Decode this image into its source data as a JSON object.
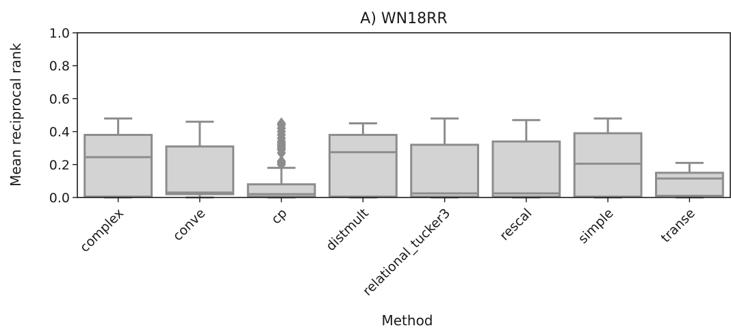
{
  "chart_data": {
    "type": "box",
    "title": "A) WN18RR",
    "xlabel": "Method",
    "ylabel": "Mean reciprocal rank",
    "ylim": [
      0.0,
      1.0
    ],
    "yticks": [
      "0.0",
      "0.2",
      "0.4",
      "0.6",
      "0.8",
      "1.0"
    ],
    "categories": [
      "complex",
      "conve",
      "cp",
      "distmult",
      "relational_tucker3",
      "rescal",
      "simple",
      "transe"
    ],
    "boxes": [
      {
        "min": 0.0,
        "q1": 0.005,
        "median": 0.245,
        "q3": 0.38,
        "max": 0.48,
        "outliers": []
      },
      {
        "min": 0.0,
        "q1": 0.02,
        "median": 0.03,
        "q3": 0.31,
        "max": 0.46,
        "outliers": []
      },
      {
        "min": 0.0,
        "q1": 0.005,
        "median": 0.02,
        "q3": 0.08,
        "max": 0.18,
        "outliers": [
          0.2,
          0.21,
          0.22,
          0.27,
          0.29,
          0.3,
          0.31,
          0.32,
          0.33,
          0.34,
          0.36,
          0.38,
          0.4,
          0.42,
          0.44,
          0.45
        ]
      },
      {
        "min": 0.0,
        "q1": 0.005,
        "median": 0.275,
        "q3": 0.38,
        "max": 0.45,
        "outliers": []
      },
      {
        "min": 0.0,
        "q1": 0.005,
        "median": 0.025,
        "q3": 0.32,
        "max": 0.48,
        "outliers": []
      },
      {
        "min": 0.0,
        "q1": 0.005,
        "median": 0.025,
        "q3": 0.34,
        "max": 0.47,
        "outliers": []
      },
      {
        "min": 0.0,
        "q1": 0.005,
        "median": 0.205,
        "q3": 0.39,
        "max": 0.48,
        "outliers": []
      },
      {
        "min": 0.0,
        "q1": 0.01,
        "median": 0.115,
        "q3": 0.15,
        "max": 0.21,
        "outliers": []
      }
    ],
    "colors": {
      "box_fill": "#d3d3d3",
      "box_line": "#8c8c8c",
      "axis": "#1a1a1a"
    },
    "grid": false,
    "legend": "none"
  }
}
